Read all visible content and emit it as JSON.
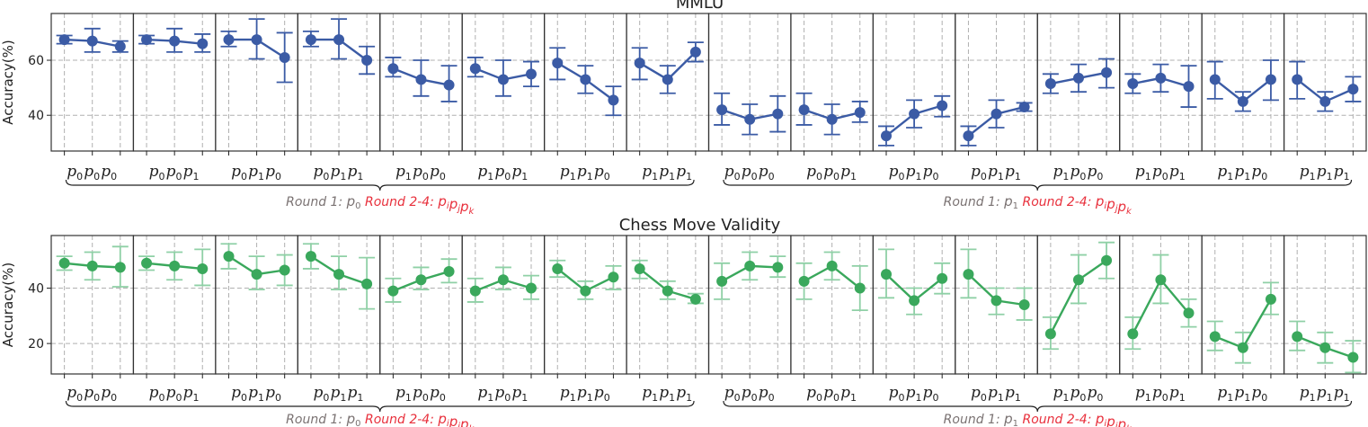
{
  "chart_data": [
    {
      "type": "line",
      "title": "MMLU",
      "ylabel": "Accuracy(%)",
      "ylim": [
        27,
        77
      ],
      "yticks": [
        40,
        60
      ],
      "grid": true,
      "color": "#3b5ba5",
      "panels": [
        {
          "label": [
            "p",
            "0",
            "p",
            "0",
            "p",
            "0"
          ],
          "values": [
            67.5,
            67,
            65
          ],
          "err": [
            [
              66,
              69
            ],
            [
              63,
              71.5
            ],
            [
              63,
              67
            ]
          ]
        },
        {
          "label": [
            "p",
            "0",
            "p",
            "0",
            "p",
            "1"
          ],
          "values": [
            67.5,
            67,
            66
          ],
          "err": [
            [
              66,
              69
            ],
            [
              63,
              71.5
            ],
            [
              63,
              69.5
            ]
          ]
        },
        {
          "label": [
            "p",
            "0",
            "p",
            "1",
            "p",
            "0"
          ],
          "values": [
            67.5,
            67.5,
            61
          ],
          "err": [
            [
              65,
              70.5
            ],
            [
              60.5,
              75
            ],
            [
              52,
              70
            ]
          ]
        },
        {
          "label": [
            "p",
            "0",
            "p",
            "1",
            "p",
            "1"
          ],
          "values": [
            67.5,
            67.5,
            60
          ],
          "err": [
            [
              65,
              70.5
            ],
            [
              60.5,
              75
            ],
            [
              55,
              65
            ]
          ]
        },
        {
          "label": [
            "p",
            "1",
            "p",
            "0",
            "p",
            "0"
          ],
          "values": [
            57,
            53,
            51
          ],
          "err": [
            [
              54,
              61
            ],
            [
              47,
              60
            ],
            [
              45,
              58
            ]
          ]
        },
        {
          "label": [
            "p",
            "1",
            "p",
            "0",
            "p",
            "1"
          ],
          "values": [
            57,
            53,
            55
          ],
          "err": [
            [
              54,
              61
            ],
            [
              47,
              60
            ],
            [
              50.5,
              59.5
            ]
          ]
        },
        {
          "label": [
            "p",
            "1",
            "p",
            "1",
            "p",
            "0"
          ],
          "values": [
            59,
            53,
            45.5
          ],
          "err": [
            [
              53,
              64.5
            ],
            [
              48,
              58
            ],
            [
              40,
              50.5
            ]
          ]
        },
        {
          "label": [
            "p",
            "1",
            "p",
            "1",
            "p",
            "1"
          ],
          "values": [
            59,
            53,
            63
          ],
          "err": [
            [
              53,
              64.5
            ],
            [
              48,
              58
            ],
            [
              59.5,
              66.5
            ]
          ]
        },
        {
          "label": [
            "p",
            "0",
            "p",
            "0",
            "p",
            "0"
          ],
          "values": [
            42,
            38.5,
            40.5
          ],
          "err": [
            [
              36.5,
              48
            ],
            [
              33,
              44
            ],
            [
              34,
              47
            ]
          ]
        },
        {
          "label": [
            "p",
            "0",
            "p",
            "0",
            "p",
            "1"
          ],
          "values": [
            42,
            38.5,
            41
          ],
          "err": [
            [
              36.5,
              48
            ],
            [
              33,
              44
            ],
            [
              37.5,
              45
            ]
          ]
        },
        {
          "label": [
            "p",
            "0",
            "p",
            "1",
            "p",
            "0"
          ],
          "values": [
            32.5,
            40.5,
            43.5
          ],
          "err": [
            [
              29,
              36
            ],
            [
              35.5,
              45.5
            ],
            [
              39.5,
              47
            ]
          ]
        },
        {
          "label": [
            "p",
            "0",
            "p",
            "1",
            "p",
            "1"
          ],
          "values": [
            32.5,
            40.5,
            43
          ],
          "err": [
            [
              29,
              36
            ],
            [
              35.5,
              45.5
            ],
            [
              41.5,
              44.5
            ]
          ]
        },
        {
          "label": [
            "p",
            "1",
            "p",
            "0",
            "p",
            "0"
          ],
          "values": [
            51.5,
            53.5,
            55.5
          ],
          "err": [
            [
              48,
              55
            ],
            [
              48.5,
              58.5
            ],
            [
              50,
              60.5
            ]
          ]
        },
        {
          "label": [
            "p",
            "1",
            "p",
            "0",
            "p",
            "1"
          ],
          "values": [
            51.5,
            53.5,
            50.5
          ],
          "err": [
            [
              48,
              55
            ],
            [
              48.5,
              58.5
            ],
            [
              43,
              58
            ]
          ]
        },
        {
          "label": [
            "p",
            "1",
            "p",
            "1",
            "p",
            "0"
          ],
          "values": [
            53,
            45,
            53
          ],
          "err": [
            [
              46,
              59.5
            ],
            [
              41.5,
              48.5
            ],
            [
              45.5,
              60
            ]
          ]
        },
        {
          "label": [
            "p",
            "1",
            "p",
            "1",
            "p",
            "1"
          ],
          "values": [
            53,
            45,
            49.5
          ],
          "err": [
            [
              46,
              59.5
            ],
            [
              41.5,
              48.5
            ],
            [
              45,
              54
            ]
          ]
        }
      ],
      "annotations": [
        {
          "round1": "Round 1: ",
          "round1_p": "p",
          "round1_sub": "0",
          "round24": "Round 2-4: ",
          "r24_p": "p",
          "r24_subs": [
            "i",
            "j",
            "k"
          ]
        },
        {
          "round1": "Round 1: ",
          "round1_p": "p",
          "round1_sub": "1",
          "round24": "Round 2-4: ",
          "r24_p": "p",
          "r24_subs": [
            "i",
            "j",
            "k"
          ]
        }
      ]
    },
    {
      "type": "line",
      "title": "Chess Move Validity",
      "ylabel": "Accuracy(%)",
      "ylim": [
        9,
        59
      ],
      "yticks": [
        20,
        40
      ],
      "grid": true,
      "color": "#3aa85c",
      "errcolor": "#8fd0a6",
      "panels": [
        {
          "label": [
            "p",
            "0",
            "p",
            "0",
            "p",
            "0"
          ],
          "values": [
            49,
            48,
            47.5
          ],
          "err": [
            [
              46.5,
              51.5
            ],
            [
              43,
              53
            ],
            [
              40.5,
              55
            ]
          ]
        },
        {
          "label": [
            "p",
            "0",
            "p",
            "0",
            "p",
            "1"
          ],
          "values": [
            49,
            48,
            47
          ],
          "err": [
            [
              46.5,
              51.5
            ],
            [
              43,
              53
            ],
            [
              41,
              54
            ]
          ]
        },
        {
          "label": [
            "p",
            "0",
            "p",
            "1",
            "p",
            "0"
          ],
          "values": [
            51.5,
            45,
            46.5
          ],
          "err": [
            [
              47,
              56
            ],
            [
              39.5,
              51.5
            ],
            [
              41,
              52
            ]
          ]
        },
        {
          "label": [
            "p",
            "0",
            "p",
            "1",
            "p",
            "1"
          ],
          "values": [
            51.5,
            45,
            41.5
          ],
          "err": [
            [
              47,
              56
            ],
            [
              39.5,
              51.5
            ],
            [
              32.5,
              51
            ]
          ]
        },
        {
          "label": [
            "p",
            "1",
            "p",
            "0",
            "p",
            "0"
          ],
          "values": [
            39,
            43,
            46
          ],
          "err": [
            [
              35,
              43.5
            ],
            [
              39.5,
              47.5
            ],
            [
              42,
              50.5
            ]
          ]
        },
        {
          "label": [
            "p",
            "1",
            "p",
            "0",
            "p",
            "1"
          ],
          "values": [
            39,
            43,
            40
          ],
          "err": [
            [
              35,
              43.5
            ],
            [
              39.5,
              47.5
            ],
            [
              36,
              44.5
            ]
          ]
        },
        {
          "label": [
            "p",
            "1",
            "p",
            "1",
            "p",
            "0"
          ],
          "values": [
            47,
            39,
            44
          ],
          "err": [
            [
              44,
              50
            ],
            [
              36,
              42.5
            ],
            [
              39.5,
              48
            ]
          ]
        },
        {
          "label": [
            "p",
            "1",
            "p",
            "1",
            "p",
            "1"
          ],
          "values": [
            47,
            39,
            36
          ],
          "err": [
            [
              43.5,
              50
            ],
            [
              36,
              42.5
            ],
            [
              34.5,
              38
            ]
          ]
        },
        {
          "label": [
            "p",
            "0",
            "p",
            "0",
            "p",
            "0"
          ],
          "values": [
            42.5,
            48,
            47.5
          ],
          "err": [
            [
              36,
              49
            ],
            [
              43,
              53
            ],
            [
              44,
              51.5
            ]
          ]
        },
        {
          "label": [
            "p",
            "0",
            "p",
            "0",
            "p",
            "1"
          ],
          "values": [
            42.5,
            48,
            40
          ],
          "err": [
            [
              36,
              49
            ],
            [
              43,
              53
            ],
            [
              32,
              48
            ]
          ]
        },
        {
          "label": [
            "p",
            "0",
            "p",
            "1",
            "p",
            "0"
          ],
          "values": [
            45,
            35.5,
            43.5
          ],
          "err": [
            [
              36.5,
              54
            ],
            [
              30.5,
              40
            ],
            [
              38,
              49
            ]
          ]
        },
        {
          "label": [
            "p",
            "0",
            "p",
            "1",
            "p",
            "1"
          ],
          "values": [
            45,
            35.5,
            34
          ],
          "err": [
            [
              36.5,
              54
            ],
            [
              30.5,
              40
            ],
            [
              28.5,
              40
            ]
          ]
        },
        {
          "label": [
            "p",
            "1",
            "p",
            "0",
            "p",
            "0"
          ],
          "values": [
            23.5,
            43,
            50
          ],
          "err": [
            [
              18,
              29.5
            ],
            [
              34.5,
              52
            ],
            [
              43.5,
              56.5
            ]
          ]
        },
        {
          "label": [
            "p",
            "1",
            "p",
            "0",
            "p",
            "1"
          ],
          "values": [
            23.5,
            43,
            31
          ],
          "err": [
            [
              18,
              29.5
            ],
            [
              34.5,
              52
            ],
            [
              26,
              36
            ]
          ]
        },
        {
          "label": [
            "p",
            "1",
            "p",
            "1",
            "p",
            "0"
          ],
          "values": [
            22.5,
            18.5,
            36
          ],
          "err": [
            [
              17.5,
              28
            ],
            [
              13,
              24
            ],
            [
              30.5,
              42
            ]
          ]
        },
        {
          "label": [
            "p",
            "1",
            "p",
            "1",
            "p",
            "1"
          ],
          "values": [
            22.5,
            18.5,
            15
          ],
          "err": [
            [
              17.5,
              28
            ],
            [
              13,
              24
            ],
            [
              9.5,
              21
            ]
          ]
        }
      ],
      "annotations": [
        {
          "round1": "Round 1: ",
          "round1_p": "p",
          "round1_sub": "0",
          "round24": "Round 2-4: ",
          "r24_p": "p",
          "r24_subs": [
            "i",
            "j",
            "k"
          ]
        },
        {
          "round1": "Round 1: ",
          "round1_p": "p",
          "round1_sub": "1",
          "round24": "Round 2-4: ",
          "r24_p": "p",
          "r24_subs": [
            "i",
            "j",
            "k"
          ]
        }
      ]
    }
  ]
}
